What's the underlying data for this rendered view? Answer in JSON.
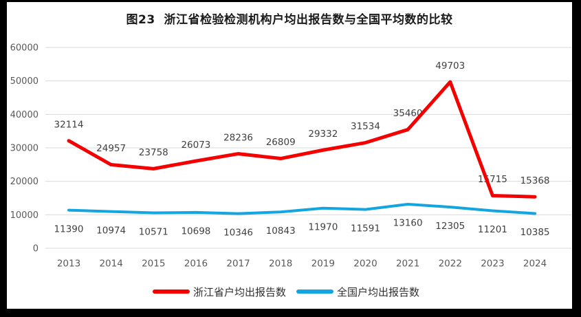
{
  "chart_data": {
    "type": "line",
    "title": "图23  浙江省检验检测机构户均出报告数与全国平均数的比较",
    "categories": [
      "2013",
      "2014",
      "2015",
      "2016",
      "2017",
      "2018",
      "2019",
      "2020",
      "2021",
      "2022",
      "2023",
      "2024"
    ],
    "series": [
      {
        "name": "浙江省户均出报告数",
        "color": "#f40000",
        "label_position": "above",
        "values": [
          32114,
          24957,
          23758,
          26073,
          28236,
          26809,
          29332,
          31534,
          35460,
          49703,
          15715,
          15368
        ]
      },
      {
        "name": "全国户均出报告数",
        "color": "#12a5e0",
        "label_position": "below",
        "values": [
          11390,
          10974,
          10571,
          10698,
          10346,
          10843,
          11970,
          11591,
          13160,
          12305,
          11201,
          10385
        ]
      }
    ],
    "y_ticks": [
      0,
      10000,
      20000,
      30000,
      40000,
      50000,
      60000
    ],
    "ylim": [
      0,
      60000
    ],
    "xlabel": "",
    "ylabel": "",
    "grid": true,
    "legend_position": "bottom"
  },
  "colors": {
    "zhejiang_red": "#f40000",
    "national_blue": "#12a5e0",
    "gridline": "#d9d9d9",
    "axis_text": "#595959",
    "data_label_text": "#404040",
    "frame": "#000000",
    "background": "#ffffff"
  }
}
